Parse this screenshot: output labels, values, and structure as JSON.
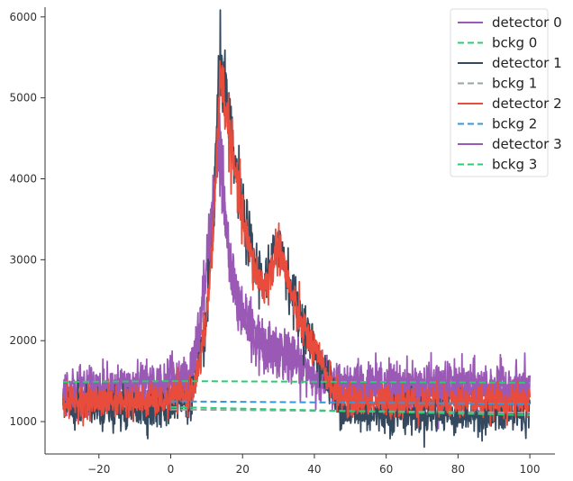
{
  "chart_data": {
    "type": "line",
    "xlim": [
      -35,
      107
    ],
    "ylim": [
      600,
      6120
    ],
    "x_ticks": [
      -20,
      0,
      20,
      40,
      60,
      80,
      100
    ],
    "x_tick_labels": [
      "−20",
      "0",
      "20",
      "40",
      "60",
      "80",
      "100"
    ],
    "y_ticks": [
      1000,
      2000,
      3000,
      4000,
      5000,
      6000
    ],
    "y_tick_labels": [
      "1000",
      "2000",
      "3000",
      "4000",
      "5000",
      "6000"
    ],
    "grid": false,
    "legend_position": "top-right",
    "x_range": [
      -30,
      100
    ],
    "signal_series": [
      {
        "name": "detector 0",
        "color": "#9b59b6",
        "noise": 110,
        "profile": [
          [
            -30,
            1300
          ],
          [
            -0.5,
            1300
          ],
          [
            0,
            1550
          ],
          [
            1,
            1400
          ],
          [
            5,
            1450
          ],
          [
            8,
            2100
          ],
          [
            10,
            2900
          ],
          [
            12,
            3800
          ],
          [
            13,
            4500
          ],
          [
            14,
            4300
          ],
          [
            15,
            3600
          ],
          [
            17,
            2800
          ],
          [
            20,
            2400
          ],
          [
            25,
            2000
          ],
          [
            30,
            1900
          ],
          [
            35,
            1750
          ],
          [
            40,
            1550
          ],
          [
            45,
            1400
          ],
          [
            60,
            1370
          ],
          [
            80,
            1360
          ],
          [
            100,
            1360
          ]
        ]
      },
      {
        "name": "detector 1",
        "color": "#34495e",
        "noise": 120,
        "profile": [
          [
            -30,
            1150
          ],
          [
            -1,
            1150
          ],
          [
            0,
            1200
          ],
          [
            5,
            1250
          ],
          [
            8,
            1600
          ],
          [
            10,
            2300
          ],
          [
            12,
            3500
          ],
          [
            13,
            4800
          ],
          [
            14,
            5500
          ],
          [
            15,
            5100
          ],
          [
            17,
            4400
          ],
          [
            20,
            3600
          ],
          [
            23,
            3000
          ],
          [
            26,
            2700
          ],
          [
            28,
            2900
          ],
          [
            30,
            3300
          ],
          [
            32,
            2900
          ],
          [
            35,
            2400
          ],
          [
            38,
            2100
          ],
          [
            42,
            1700
          ],
          [
            46,
            1250
          ],
          [
            50,
            1100
          ],
          [
            100,
            1080
          ]
        ]
      },
      {
        "name": "detector 2",
        "color": "#e74c3c",
        "noise": 100,
        "profile": [
          [
            -30,
            1250
          ],
          [
            -1,
            1250
          ],
          [
            0,
            1300
          ],
          [
            5,
            1320
          ],
          [
            8,
            1650
          ],
          [
            10,
            2300
          ],
          [
            12,
            3400
          ],
          [
            13,
            4600
          ],
          [
            14,
            5300
          ],
          [
            15,
            5000
          ],
          [
            17,
            4300
          ],
          [
            20,
            3500
          ],
          [
            23,
            2900
          ],
          [
            26,
            2650
          ],
          [
            28,
            2850
          ],
          [
            30,
            3200
          ],
          [
            32,
            2850
          ],
          [
            35,
            2350
          ],
          [
            38,
            2050
          ],
          [
            42,
            1700
          ],
          [
            46,
            1350
          ],
          [
            50,
            1250
          ],
          [
            100,
            1250
          ]
        ]
      },
      {
        "name": "detector 3",
        "color": "#9b59b6",
        "noise": 130,
        "profile": [
          [
            -30,
            1450
          ],
          [
            -1,
            1450
          ],
          [
            0,
            1650
          ],
          [
            2,
            1500
          ],
          [
            5,
            1550
          ],
          [
            8,
            2100
          ],
          [
            10,
            2900
          ],
          [
            12,
            3700
          ],
          [
            13,
            4400
          ],
          [
            14,
            4300
          ],
          [
            15,
            3500
          ],
          [
            17,
            2700
          ],
          [
            20,
            2300
          ],
          [
            25,
            1950
          ],
          [
            30,
            1850
          ],
          [
            35,
            1700
          ],
          [
            40,
            1600
          ],
          [
            45,
            1500
          ],
          [
            100,
            1450
          ]
        ]
      }
    ],
    "background_series": [
      {
        "name": "bckg 1",
        "color": "#95a5a6",
        "points": [
          [
            0,
            1150
          ],
          [
            100,
            1110
          ]
        ]
      },
      {
        "name": "bckg 2",
        "color": "#3498db",
        "points": [
          [
            0,
            1250
          ],
          [
            100,
            1220
          ]
        ]
      },
      {
        "name": "bckg 3",
        "color": "#2ecc71",
        "points": [
          [
            0,
            1180
          ],
          [
            100,
            1080
          ]
        ]
      },
      {
        "name": "bckg 0",
        "color": "#2ecc71",
        "points": [
          [
            -30,
            1490
          ],
          [
            0,
            1500
          ],
          [
            100,
            1480
          ]
        ]
      }
    ],
    "legend": [
      {
        "name": "detector 0",
        "color": "#9b59b6",
        "dashed": false
      },
      {
        "name": "bckg 0",
        "color": "#2ecc71",
        "dashed": true
      },
      {
        "name": "detector 1",
        "color": "#34495e",
        "dashed": false
      },
      {
        "name": "bckg 1",
        "color": "#95a5a6",
        "dashed": true
      },
      {
        "name": "detector 2",
        "color": "#e74c3c",
        "dashed": false
      },
      {
        "name": "bckg 2",
        "color": "#3498db",
        "dashed": true
      },
      {
        "name": "detector 3",
        "color": "#9b59b6",
        "dashed": false
      },
      {
        "name": "bckg 3",
        "color": "#2ecc71",
        "dashed": true
      }
    ]
  }
}
